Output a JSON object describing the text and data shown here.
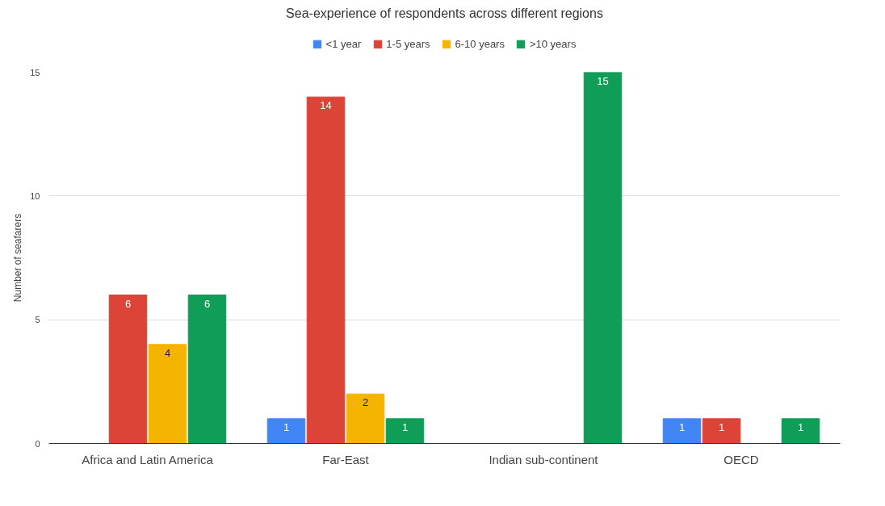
{
  "chart_data": {
    "type": "bar",
    "title": "Sea-experience of respondents across different regions",
    "ylabel": "Number of seafarers",
    "categories": [
      "Africa and Latin America",
      "Far-East",
      "Indian sub-continent",
      "OECD"
    ],
    "series": [
      {
        "name": "<1 year",
        "color": "#4285f4",
        "values": [
          null,
          1,
          null,
          1
        ]
      },
      {
        "name": "1-5 years",
        "color": "#db4437",
        "values": [
          6,
          14,
          null,
          1
        ]
      },
      {
        "name": "6-10 years",
        "color": "#f4b400",
        "values": [
          4,
          2,
          null,
          null
        ]
      },
      {
        "name": ">10 years",
        "color": "#0f9d58",
        "values": [
          6,
          1,
          15,
          1
        ]
      }
    ],
    "ylim": [
      0,
      15
    ],
    "yticks": [
      0,
      5,
      10,
      15
    ],
    "grid": "y",
    "legend": "top",
    "data_labels": true
  }
}
